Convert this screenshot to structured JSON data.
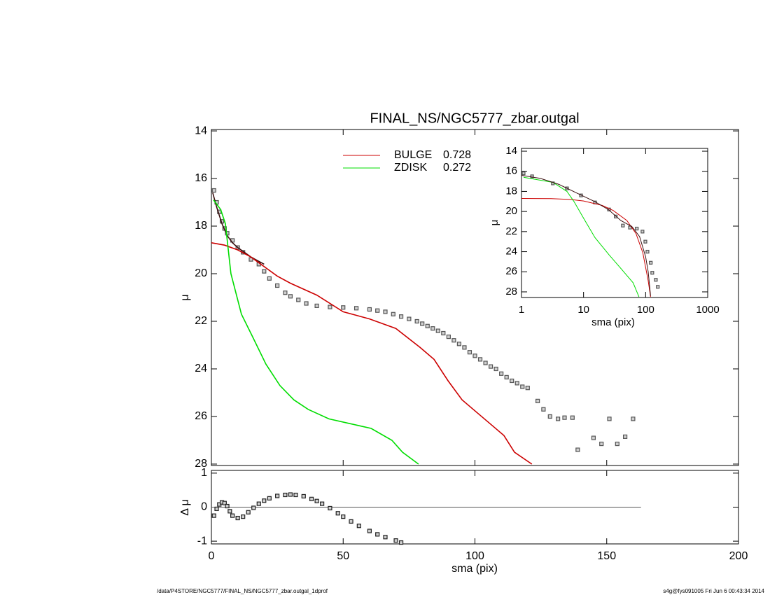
{
  "chart_data": [
    {
      "type": "profile",
      "title": "FINAL_NS/NGC5777_zbar.outgal",
      "ylabel": "μ",
      "xlim": [
        0,
        200
      ],
      "xticks": [
        0,
        50,
        100,
        150,
        200
      ],
      "xticklabels": false,
      "ylim": [
        28.06,
        13.94
      ],
      "yticks": [
        14,
        16,
        18,
        20,
        22,
        24,
        26,
        28
      ],
      "series": [
        {
          "type": "scatter",
          "color": "#555555",
          "x": [
            1,
            2,
            3,
            4,
            5,
            6,
            8,
            10,
            12,
            15,
            18,
            20,
            22,
            25,
            28,
            30,
            33,
            36,
            40,
            45,
            50,
            55,
            60,
            63,
            66,
            69,
            72,
            75,
            78,
            80,
            82,
            84,
            86,
            88,
            90,
            92,
            94,
            96,
            98,
            100,
            102,
            104,
            106,
            108,
            110,
            112,
            114,
            116,
            118,
            120,
            123.8,
            126,
            128.5,
            131.5,
            134,
            137,
            139,
            145,
            148,
            151,
            154,
            157,
            160
          ],
          "values": [
            16.5,
            17.0,
            17.4,
            17.8,
            18.1,
            18.3,
            18.6,
            18.9,
            19.1,
            19.4,
            19.6,
            19.9,
            20.2,
            20.5,
            20.8,
            20.95,
            21.1,
            21.25,
            21.35,
            21.4,
            21.42,
            21.45,
            21.5,
            21.55,
            21.6,
            21.7,
            21.8,
            21.9,
            22.0,
            22.1,
            22.2,
            22.3,
            22.4,
            22.5,
            22.65,
            22.8,
            22.95,
            23.1,
            23.3,
            23.45,
            23.6,
            23.75,
            23.9,
            24.0,
            24.2,
            24.35,
            24.5,
            24.6,
            24.75,
            24.8,
            25.35,
            25.7,
            26.0,
            26.1,
            26.05,
            26.05,
            27.4,
            26.9,
            27.15,
            26.1,
            27.15,
            26.85,
            26.1
          ]
        },
        {
          "type": "line",
          "color": "#3a1010",
          "x": [
            0.5,
            2,
            4,
            6,
            8,
            10,
            15,
            20
          ],
          "values": [
            16.6,
            17.2,
            17.9,
            18.4,
            18.7,
            18.9,
            19.3,
            19.6
          ]
        },
        {
          "type": "line",
          "name": "BULGE",
          "fraction": 0.728,
          "color": "#cc0000",
          "x": [
            0,
            5,
            10,
            15,
            20,
            25,
            30,
            40,
            50,
            60,
            70,
            79.2,
            84.5,
            89.8,
            95.1,
            100.4,
            105.7,
            111,
            115,
            121.6
          ],
          "values": [
            18.7,
            18.8,
            19.0,
            19.3,
            19.7,
            20.1,
            20.4,
            20.9,
            21.6,
            21.9,
            22.3,
            23.1,
            23.6,
            24.5,
            25.3,
            25.8,
            26.3,
            26.8,
            27.5,
            28.0
          ]
        },
        {
          "type": "line",
          "name": "ZDISK",
          "fraction": 0.272,
          "color": "#00dd00",
          "x": [
            0.8,
            3.5,
            5.3,
            7.4,
            11.4,
            15.4,
            20.7,
            26,
            31.3,
            36.7,
            44.6,
            52.6,
            60.6,
            68.5,
            72.5,
            78.6
          ],
          "values": [
            16.9,
            17.3,
            17.9,
            20.0,
            21.7,
            22.6,
            23.8,
            24.7,
            25.3,
            25.7,
            26.1,
            26.3,
            26.5,
            27.0,
            27.5,
            28.0
          ]
        }
      ]
    },
    {
      "type": "profile",
      "xlabel": "sma (pix)",
      "ylabel": "Δ μ",
      "xlim": [
        0,
        200
      ],
      "xticks": [
        0,
        50,
        100,
        150,
        200
      ],
      "xticklabels": true,
      "ylim": [
        -1.08,
        1.08
      ],
      "yticks": [
        -1,
        0,
        1
      ],
      "hline": {
        "y": 0,
        "x": [
          0,
          163
        ]
      },
      "series": [
        {
          "type": "scatter",
          "color": "#222222",
          "x": [
            1,
            2,
            3,
            4,
            5,
            6,
            7,
            8,
            10,
            12,
            14,
            16,
            18,
            20,
            22,
            25,
            28,
            30,
            32,
            35,
            38,
            40,
            42,
            45,
            48,
            50,
            53,
            56,
            60,
            63,
            66,
            70,
            72
          ],
          "values": [
            -0.25,
            -0.05,
            0.08,
            0.14,
            0.12,
            0.03,
            -0.12,
            -0.25,
            -0.32,
            -0.28,
            -0.15,
            -0.02,
            0.1,
            0.19,
            0.26,
            0.33,
            0.36,
            0.37,
            0.36,
            0.32,
            0.24,
            0.18,
            0.1,
            -0.03,
            -0.18,
            -0.28,
            -0.42,
            -0.55,
            -0.7,
            -0.8,
            -0.88,
            -0.98,
            -1.04
          ]
        }
      ]
    },
    {
      "type": "profile",
      "xlabel": "sma (pix)",
      "ylabel": "μ",
      "xlog": true,
      "xlim": [
        1,
        1000
      ],
      "xticks": [
        1,
        10,
        100,
        1000
      ],
      "xticklabels": true,
      "ylim": [
        28.56,
        13.72
      ],
      "yticks": [
        14,
        16,
        18,
        20,
        22,
        24,
        26,
        28
      ],
      "series": [
        {
          "type": "scatter",
          "color": "#555555",
          "x": [
            1.08,
            1.48,
            3.2,
            5.4,
            9.1,
            15.3,
            25.7,
            33,
            43,
            56,
            72,
            89,
            99,
            107,
            121,
            128,
            146,
            157
          ],
          "values": [
            16.2,
            16.5,
            17.2,
            17.7,
            18.4,
            19.1,
            19.8,
            20.5,
            21.4,
            21.6,
            21.7,
            22.0,
            23.0,
            24.0,
            25.1,
            26.1,
            26.8,
            27.5
          ]
        },
        {
          "type": "line",
          "color": "#cc0000",
          "x": [
            1,
            3,
            6,
            10,
            20,
            30,
            50,
            70,
            90,
            110,
            120
          ],
          "values": [
            18.7,
            18.72,
            18.8,
            18.95,
            19.4,
            19.9,
            20.9,
            22.2,
            24.1,
            26.9,
            28.5
          ]
        },
        {
          "type": "line",
          "color": "#00dd00",
          "x": [
            1.08,
            3.2,
            5.4,
            7,
            10.3,
            15.3,
            25.7,
            43,
            63,
            78
          ],
          "values": [
            16.6,
            17.1,
            18.0,
            19.0,
            20.8,
            22.6,
            24.3,
            25.9,
            27.1,
            28.5
          ]
        },
        {
          "type": "line",
          "color": "#3a1010",
          "x": [
            1,
            2,
            4,
            8,
            15,
            25,
            40,
            60,
            80,
            100,
            110,
            120
          ],
          "values": [
            16.4,
            16.7,
            17.3,
            18.2,
            19.0,
            19.8,
            20.9,
            21.5,
            22.5,
            24.5,
            26.0,
            28.4
          ]
        }
      ]
    }
  ],
  "footer": {
    "left": "/data/P4STORE/NGC5777/FINAL_NS/NGC5777_zbar.outgal_1dprof",
    "right": "s4g@fys091005  Fri Jun  6 00:43:34 2014"
  }
}
